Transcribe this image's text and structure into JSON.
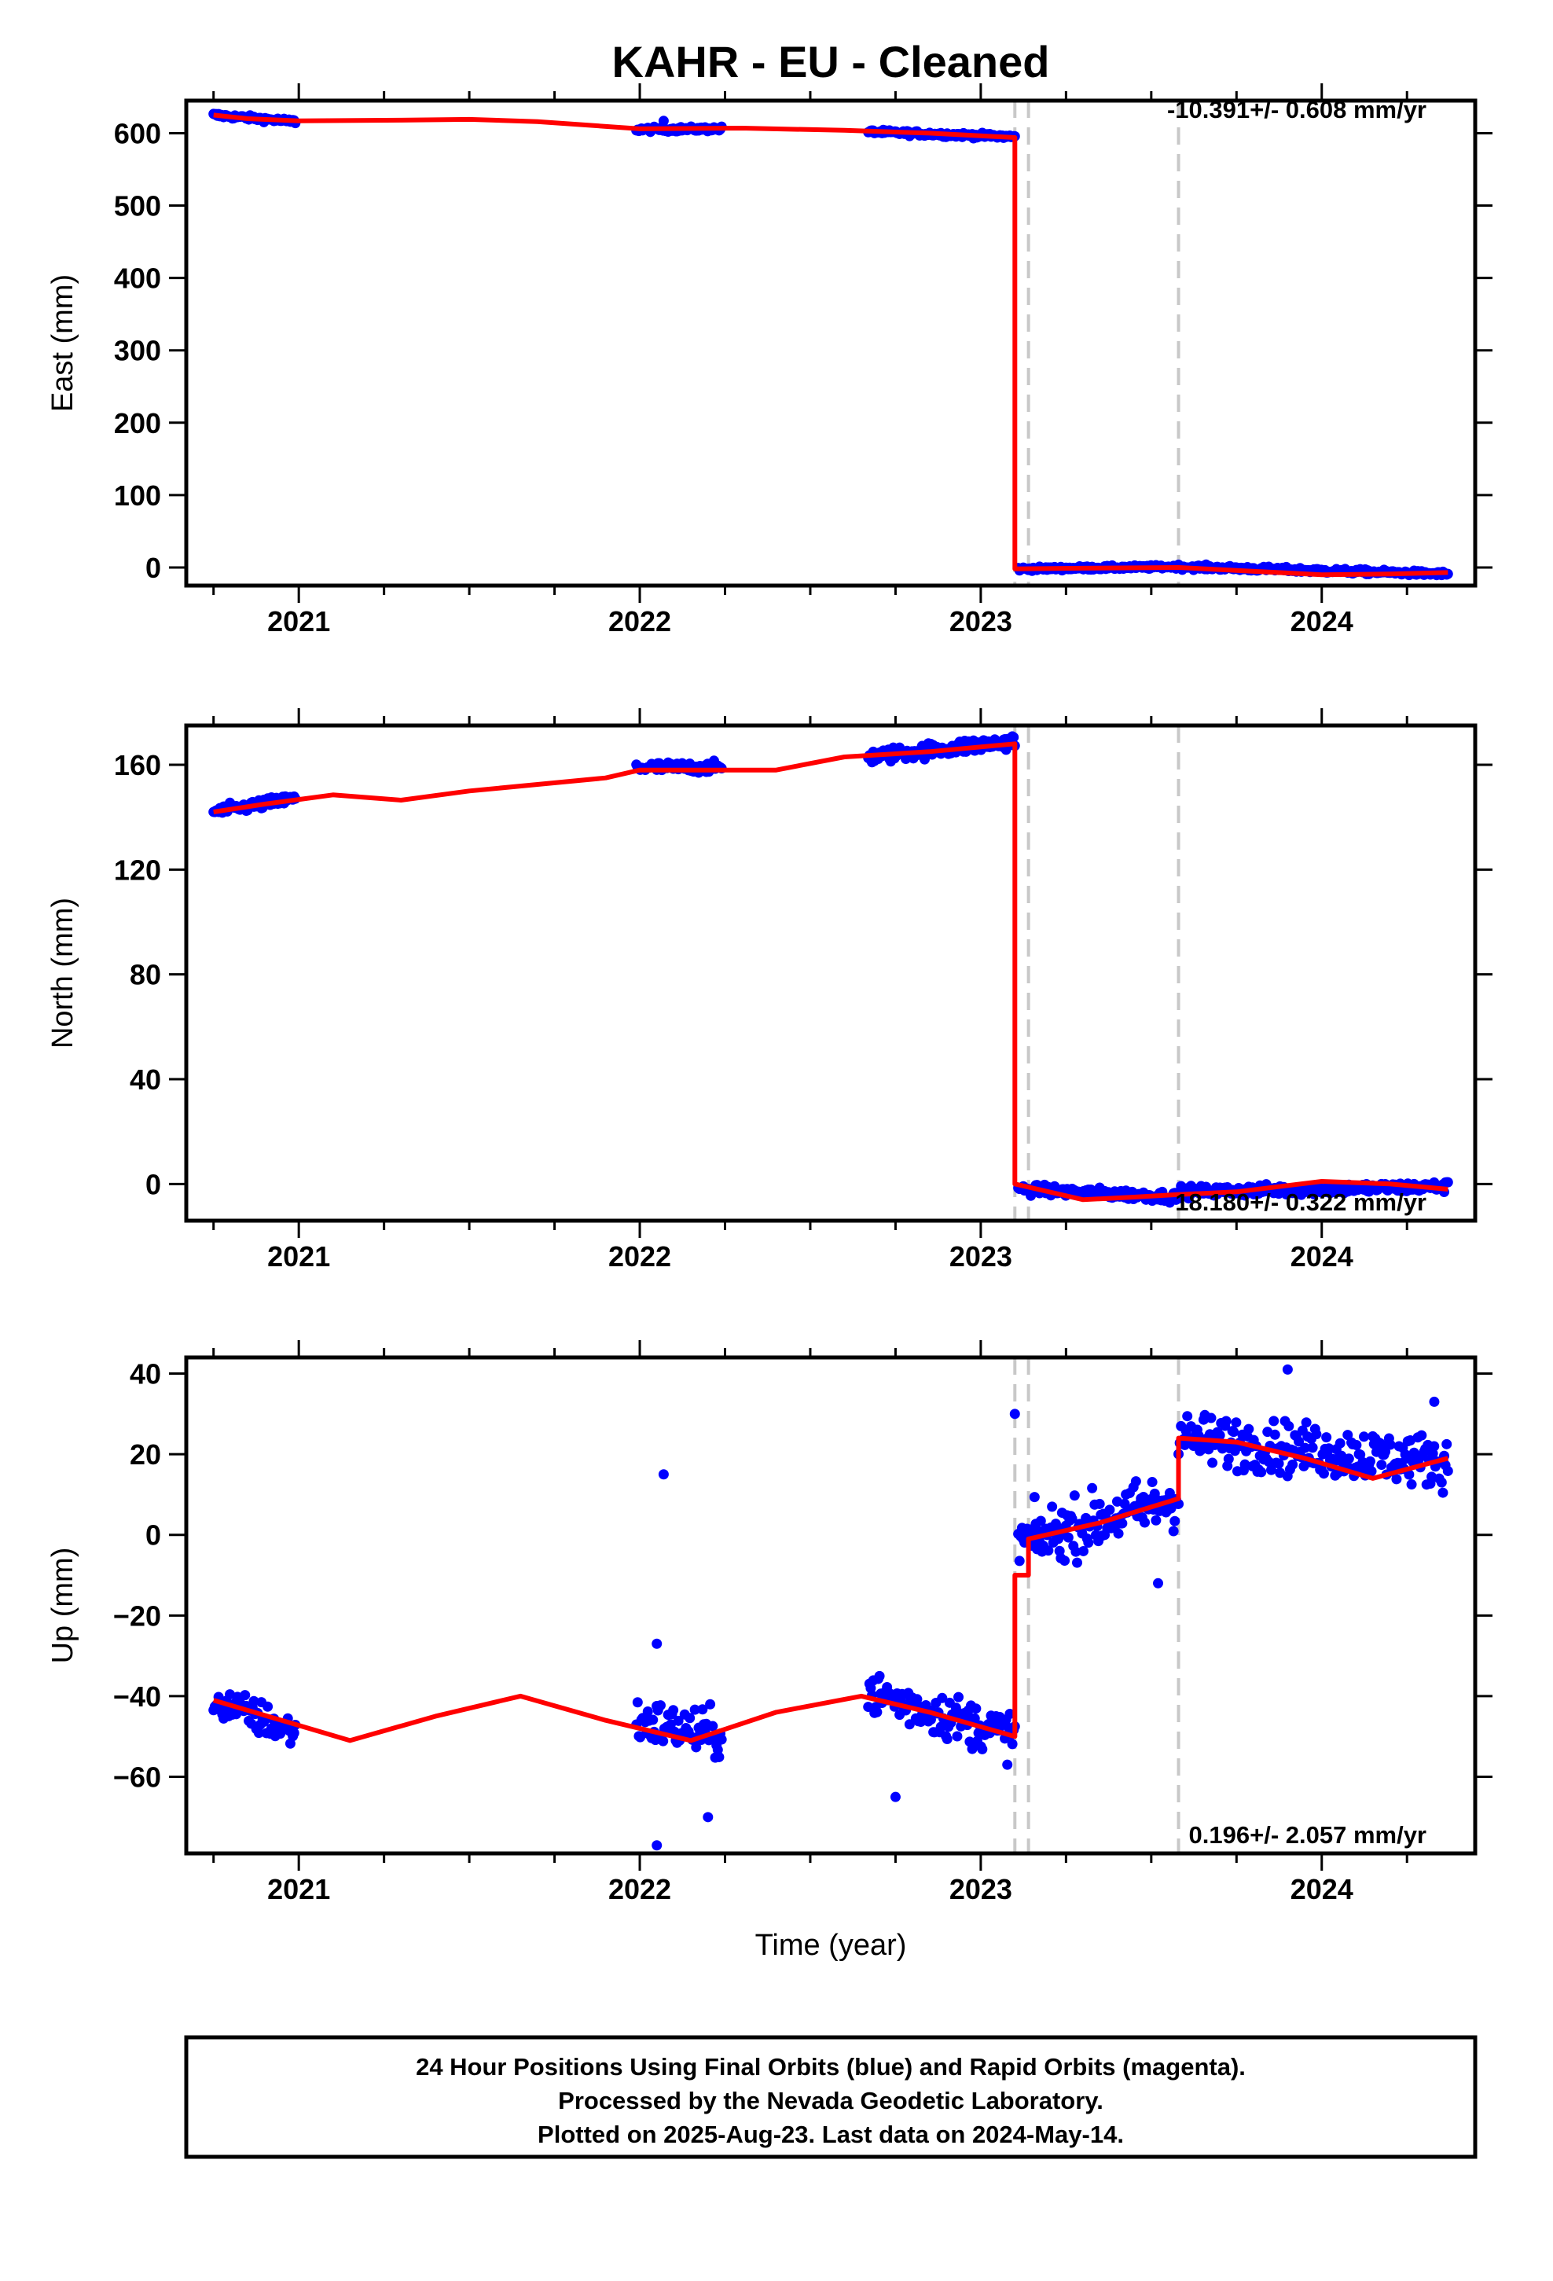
{
  "title": "KAHR  - EU - Cleaned",
  "colors": {
    "data": "#0000ff",
    "model": "#ff0000",
    "break_line": "#c8c8c8",
    "frame": "#000000"
  },
  "xlabel": "Time (year)",
  "footer": {
    "line1": "24 Hour Positions Using Final Orbits (blue) and Rapid Orbits (magenta).",
    "line2": "Processed by the Nevada Geodetic Laboratory.",
    "line3": "Plotted on 2025-Aug-23. Last data on 2024-May-14."
  },
  "chart_data": [
    {
      "type": "scatter",
      "panel": "east",
      "ylabel": "East (mm)",
      "rate_label": "-10.391+/- 0.608 mm/yr",
      "xlim": [
        2020.67,
        2024.45
      ],
      "ylim": [
        -25,
        645
      ],
      "xticks": [
        2021,
        2022,
        2023,
        2024
      ],
      "yticks": [
        0,
        100,
        200,
        300,
        400,
        500,
        600
      ],
      "breaks": [
        2023.1,
        2023.14,
        2023.58
      ],
      "segments": [
        {
          "x0": 2020.75,
          "x1": 2020.99,
          "y0": 625,
          "y1": 616,
          "noise": 2.5
        },
        {
          "x0": 2021.99,
          "x1": 2022.24,
          "y0": 605,
          "y1": 606,
          "noise": 2.5
        },
        {
          "x0": 2022.67,
          "x1": 2023.1,
          "y0": 602,
          "y1": 595,
          "noise": 2.5
        },
        {
          "x0": 2023.11,
          "x1": 2023.58,
          "y0": -2,
          "y1": 1,
          "noise": 2.0
        },
        {
          "x0": 2023.58,
          "x1": 2024.37,
          "y0": 1,
          "y1": -9,
          "noise": 2.5
        }
      ],
      "outliers": [
        {
          "x": 2022.07,
          "y": 617
        }
      ],
      "model": [
        {
          "x": 2020.75,
          "y": 625
        },
        {
          "x": 2020.85,
          "y": 620
        },
        {
          "x": 2021.0,
          "y": 617
        },
        {
          "x": 2021.3,
          "y": 618
        },
        {
          "x": 2021.5,
          "y": 619
        },
        {
          "x": 2021.7,
          "y": 616
        },
        {
          "x": 2022.0,
          "y": 606
        },
        {
          "x": 2022.3,
          "y": 607
        },
        {
          "x": 2022.6,
          "y": 604
        },
        {
          "x": 2022.85,
          "y": 600
        },
        {
          "x": 2023.1,
          "y": 594
        },
        {
          "x": 2023.1,
          "y": -2
        },
        {
          "x": 2023.3,
          "y": -1
        },
        {
          "x": 2023.58,
          "y": 0
        },
        {
          "x": 2023.75,
          "y": -4
        },
        {
          "x": 2024.0,
          "y": -10
        },
        {
          "x": 2024.2,
          "y": -9
        },
        {
          "x": 2024.37,
          "y": -7
        }
      ]
    },
    {
      "type": "scatter",
      "panel": "north",
      "ylabel": "North (mm)",
      "rate_label": "18.180+/- 0.322 mm/yr",
      "xlim": [
        2020.67,
        2024.45
      ],
      "ylim": [
        -14,
        175
      ],
      "xticks": [
        2021,
        2022,
        2023,
        2024
      ],
      "yticks": [
        0,
        40,
        80,
        120,
        160
      ],
      "breaks": [
        2023.1,
        2023.14,
        2023.58
      ],
      "segments": [
        {
          "x0": 2020.75,
          "x1": 2020.99,
          "y0": 142,
          "y1": 147,
          "noise": 1.6
        },
        {
          "x0": 2021.99,
          "x1": 2022.24,
          "y0": 159,
          "y1": 159,
          "noise": 1.6
        },
        {
          "x0": 2022.67,
          "x1": 2023.1,
          "y0": 163,
          "y1": 169,
          "noise": 2.2
        },
        {
          "x0": 2023.11,
          "x1": 2023.58,
          "y0": -2,
          "y1": -5,
          "noise": 1.5
        },
        {
          "x0": 2023.58,
          "x1": 2024.37,
          "y0": -3,
          "y1": -1,
          "noise": 1.6
        }
      ],
      "outliers": [],
      "model": [
        {
          "x": 2020.75,
          "y": 142
        },
        {
          "x": 2020.9,
          "y": 145
        },
        {
          "x": 2021.1,
          "y": 148.5
        },
        {
          "x": 2021.3,
          "y": 146.5
        },
        {
          "x": 2021.5,
          "y": 150
        },
        {
          "x": 2021.7,
          "y": 152.5
        },
        {
          "x": 2021.9,
          "y": 155
        },
        {
          "x": 2022.0,
          "y": 158
        },
        {
          "x": 2022.2,
          "y": 158
        },
        {
          "x": 2022.4,
          "y": 158
        },
        {
          "x": 2022.6,
          "y": 163
        },
        {
          "x": 2022.85,
          "y": 165
        },
        {
          "x": 2023.1,
          "y": 168
        },
        {
          "x": 2023.1,
          "y": 0
        },
        {
          "x": 2023.3,
          "y": -6
        },
        {
          "x": 2023.45,
          "y": -5
        },
        {
          "x": 2023.58,
          "y": -4
        },
        {
          "x": 2023.75,
          "y": -3
        },
        {
          "x": 2024.0,
          "y": 1
        },
        {
          "x": 2024.2,
          "y": 0
        },
        {
          "x": 2024.37,
          "y": -2
        }
      ]
    },
    {
      "type": "scatter",
      "panel": "up",
      "ylabel": "Up (mm)",
      "rate_label": "0.196+/- 2.057 mm/yr",
      "xlim": [
        2020.67,
        2024.45
      ],
      "ylim": [
        -79,
        44
      ],
      "xticks": [
        2021,
        2022,
        2023,
        2024
      ],
      "yticks": [
        -60,
        -40,
        -20,
        0,
        20,
        40
      ],
      "breaks": [
        2023.1,
        2023.14,
        2023.58
      ],
      "segments": [
        {
          "x0": 2020.75,
          "x1": 2020.99,
          "y0": -41,
          "y1": -49,
          "noise": 3.5
        },
        {
          "x0": 2021.99,
          "x1": 2022.24,
          "y0": -46,
          "y1": -50,
          "noise": 4.5
        },
        {
          "x0": 2022.67,
          "x1": 2023.1,
          "y0": -39,
          "y1": -50,
          "noise": 4.5
        },
        {
          "x0": 2023.11,
          "x1": 2023.58,
          "y0": -2,
          "y1": 9,
          "noise": 5.5
        },
        {
          "x0": 2023.58,
          "x1": 2024.37,
          "y0": 24,
          "y1": 18,
          "noise": 5.0
        }
      ],
      "outliers": [
        {
          "x": 2022.07,
          "y": 15
        },
        {
          "x": 2023.1,
          "y": 30
        },
        {
          "x": 2022.05,
          "y": -77
        },
        {
          "x": 2022.05,
          "y": -27
        },
        {
          "x": 2022.2,
          "y": -70
        },
        {
          "x": 2022.75,
          "y": -65
        },
        {
          "x": 2024.33,
          "y": 33
        },
        {
          "x": 2023.9,
          "y": 41
        },
        {
          "x": 2023.52,
          "y": -12
        }
      ],
      "model": [
        {
          "x": 2020.75,
          "y": -41
        },
        {
          "x": 2020.95,
          "y": -46
        },
        {
          "x": 2021.15,
          "y": -51
        },
        {
          "x": 2021.4,
          "y": -45
        },
        {
          "x": 2021.65,
          "y": -40
        },
        {
          "x": 2021.9,
          "y": -46
        },
        {
          "x": 2022.15,
          "y": -51
        },
        {
          "x": 2022.4,
          "y": -44
        },
        {
          "x": 2022.65,
          "y": -40
        },
        {
          "x": 2022.85,
          "y": -44
        },
        {
          "x": 2023.1,
          "y": -50
        },
        {
          "x": 2023.1,
          "y": -10
        },
        {
          "x": 2023.14,
          "y": -10
        },
        {
          "x": 2023.14,
          "y": -1
        },
        {
          "x": 2023.35,
          "y": 3
        },
        {
          "x": 2023.58,
          "y": 9
        },
        {
          "x": 2023.58,
          "y": 24
        },
        {
          "x": 2023.75,
          "y": 23
        },
        {
          "x": 2023.95,
          "y": 19
        },
        {
          "x": 2024.15,
          "y": 14
        },
        {
          "x": 2024.37,
          "y": 19
        }
      ]
    }
  ]
}
